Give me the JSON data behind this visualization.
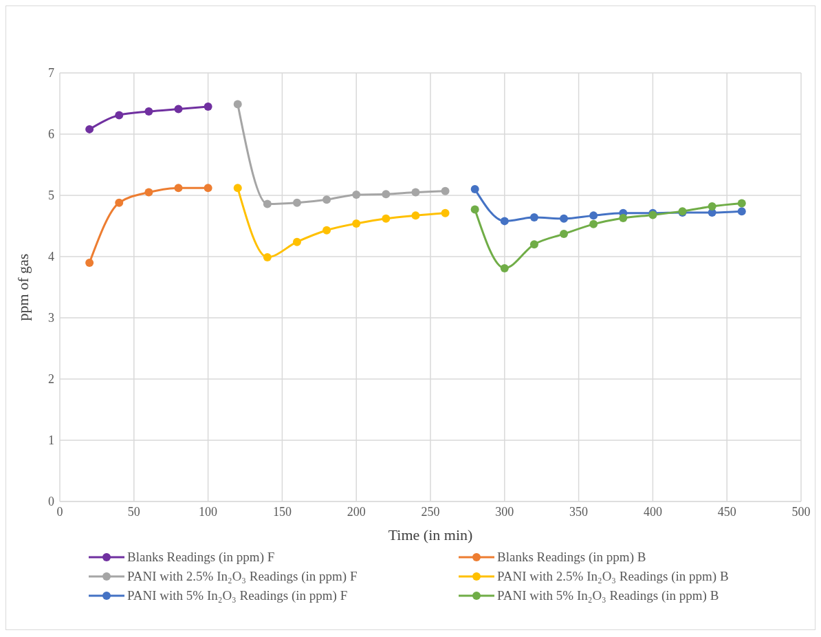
{
  "chart_data": {
    "type": "line",
    "xlabel": "Time (in min)",
    "ylabel": "ppm of gas",
    "xlim": [
      0,
      500
    ],
    "xticks": [
      0,
      50,
      100,
      150,
      200,
      250,
      300,
      350,
      400,
      450,
      500
    ],
    "ylim": [
      0,
      7
    ],
    "yticks": [
      0,
      1,
      2,
      3,
      4,
      5,
      6,
      7
    ],
    "grid": true,
    "legend": "bottom",
    "marker": "circle",
    "series": [
      {
        "name": "Blanks Readings (in ppm) F",
        "color": "#7030a0",
        "x": [
          20,
          40,
          60,
          80,
          100
        ],
        "values": [
          6.08,
          6.31,
          6.37,
          6.41,
          6.45
        ]
      },
      {
        "name": "Blanks Readings (in ppm) B",
        "color": "#ed7d31",
        "x": [
          20,
          40,
          60,
          80,
          100
        ],
        "values": [
          3.9,
          4.88,
          5.05,
          5.12,
          5.12
        ]
      },
      {
        "name": "PANI with 2.5% In₂O₃ Readings (in ppm) F",
        "color": "#a5a5a5",
        "x": [
          120,
          140,
          160,
          180,
          200,
          220,
          240,
          260
        ],
        "values": [
          6.49,
          4.86,
          4.88,
          4.93,
          5.01,
          5.02,
          5.05,
          5.07
        ]
      },
      {
        "name": "PANI with 2.5% In₂O₃ Readings (in ppm) B",
        "color": "#ffc000",
        "x": [
          120,
          140,
          160,
          180,
          200,
          220,
          240,
          260
        ],
        "values": [
          5.12,
          3.99,
          4.24,
          4.43,
          4.54,
          4.62,
          4.67,
          4.71
        ]
      },
      {
        "name": "PANI with 5% In₂O₃ Readings (in ppm) F",
        "color": "#4472c4",
        "x": [
          280,
          300,
          320,
          340,
          360,
          380,
          400,
          420,
          440,
          460
        ],
        "values": [
          5.1,
          4.58,
          4.64,
          4.62,
          4.67,
          4.71,
          4.71,
          4.72,
          4.72,
          4.74
        ]
      },
      {
        "name": "PANI with 5% In₂O₃ Readings (in ppm) B",
        "color": "#70ad47",
        "x": [
          280,
          300,
          320,
          340,
          360,
          380,
          400,
          420,
          440,
          460
        ],
        "values": [
          4.77,
          3.81,
          4.2,
          4.37,
          4.53,
          4.63,
          4.68,
          4.74,
          4.82,
          4.87
        ]
      }
    ]
  }
}
